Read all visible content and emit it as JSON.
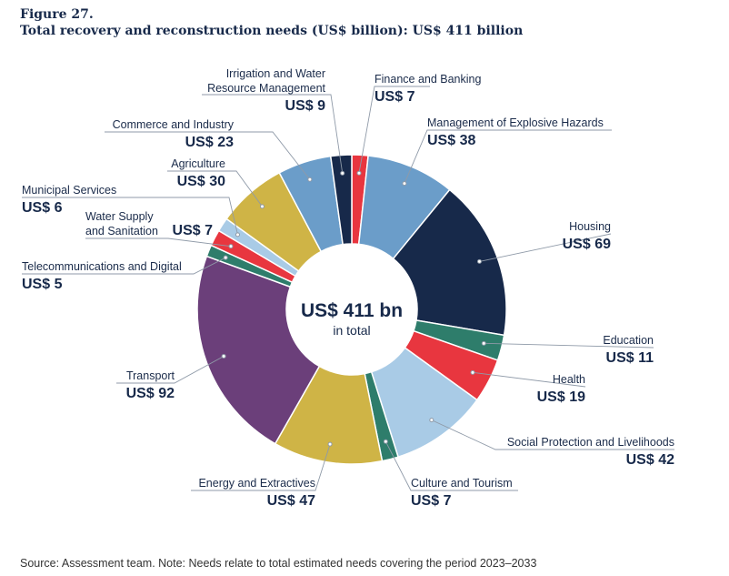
{
  "figure": {
    "label": "Figure 27.",
    "title": "Total recovery and reconstruction needs (US$ billion): US$ 411 billion"
  },
  "center": {
    "value": "US$ 411 bn",
    "caption": "in total"
  },
  "source": "Source: Assessment team. Note: Needs relate to total estimated needs covering the period 2023–2033",
  "chart_data": {
    "type": "pie",
    "subtype": "donut",
    "title": "Total recovery and reconstruction needs (US$ billion): US$ 411 billion",
    "unit": "US$ billion",
    "total": 411,
    "categories": [
      "Finance and Banking",
      "Management of Explosive Hazards",
      "Housing",
      "Education",
      "Health",
      "Social Protection and Livelihoods",
      "Culture and Tourism",
      "Energy and Extractives",
      "Transport",
      "Telecommunications and Digital",
      "Water Supply and Sanitation",
      "Municipal Services",
      "Agriculture",
      "Commerce and Industry",
      "Irrigation and Water Resource Management"
    ],
    "values": [
      7,
      38,
      69,
      11,
      19,
      42,
      7,
      47,
      92,
      5,
      7,
      6,
      30,
      23,
      9
    ],
    "value_labels": [
      "US$ 7",
      "US$ 38",
      "US$ 69",
      "US$ 11",
      "US$ 19",
      "US$ 42",
      "US$ 7",
      "US$ 47",
      "US$ 92",
      "US$ 5",
      "US$ 7",
      "US$ 6",
      "US$ 30",
      "US$ 23",
      "US$ 9"
    ],
    "label_lines": [
      [
        "Finance and Banking"
      ],
      [
        "Management of Explosive Hazards"
      ],
      [
        "Housing"
      ],
      [
        "Education"
      ],
      [
        "Health"
      ],
      [
        "Social Protection and Livelihoods"
      ],
      [
        "Culture and Tourism"
      ],
      [
        "Energy and Extractives"
      ],
      [
        "Transport"
      ],
      [
        "Telecommunications and Digital"
      ],
      [
        "Water Supply",
        "and Sanitation"
      ],
      [
        "Municipal Services"
      ],
      [
        "Agriculture"
      ],
      [
        "Commerce and Industry"
      ],
      [
        "Irrigation and Water",
        "Resource Management"
      ]
    ],
    "colors": [
      "#e8363f",
      "#6b9dc9",
      "#17294a",
      "#2e7d6b",
      "#e8363f",
      "#a9cbe6",
      "#2e7d6b",
      "#cfb446",
      "#6b3f7a",
      "#2e7d6b",
      "#e8363f",
      "#a9cbe6",
      "#cfb446",
      "#6b9dc9",
      "#17294a"
    ]
  }
}
